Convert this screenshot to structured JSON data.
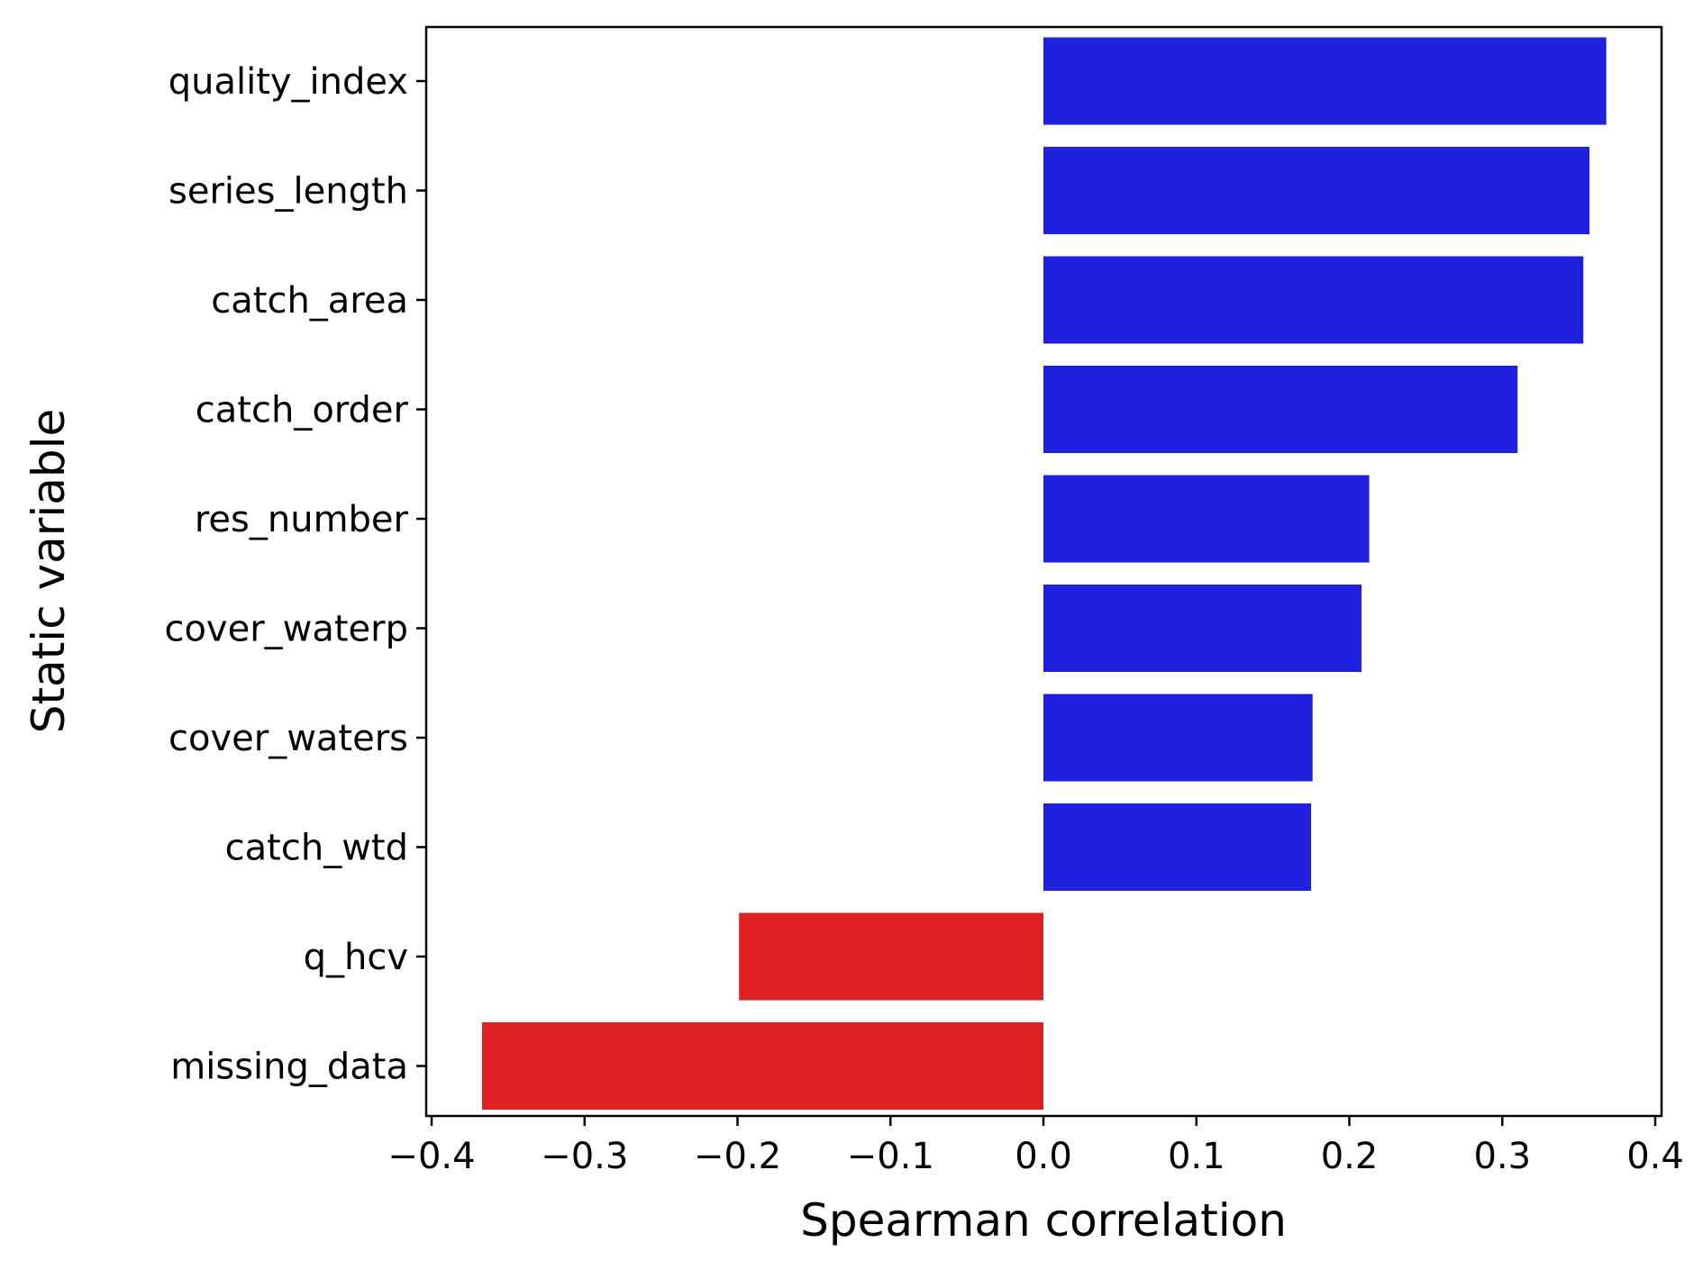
{
  "chart_data": {
    "type": "bar",
    "orientation": "horizontal",
    "title": "",
    "xlabel": "Spearman correlation",
    "ylabel": "Static variable",
    "xlim": [
      -0.4,
      0.4
    ],
    "xticks": [
      "−0.4",
      "−0.3",
      "−0.2",
      "−0.1",
      "0.0",
      "0.1",
      "0.2",
      "0.3",
      "0.4"
    ],
    "categories": [
      "quality_index",
      "series_length",
      "catch_area",
      "catch_order",
      "res_number",
      "cover_waterp",
      "cover_waters",
      "catch_wtd",
      "q_hcv",
      "missing_data"
    ],
    "values": [
      0.368,
      0.357,
      0.353,
      0.31,
      0.213,
      0.208,
      0.176,
      0.175,
      -0.199,
      -0.367
    ],
    "colors": {
      "positive": "#2020df",
      "negative": "#df2020"
    },
    "grid": false,
    "legend": "none"
  }
}
